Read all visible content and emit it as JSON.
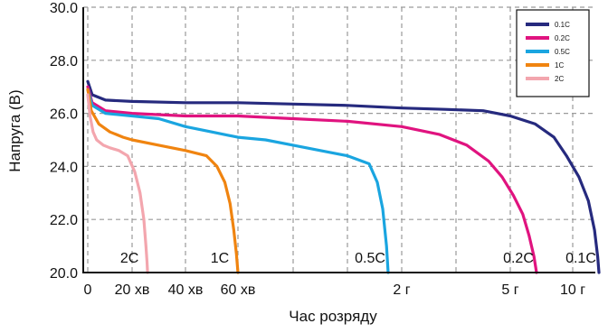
{
  "chart_data": {
    "type": "line",
    "title": "",
    "xlabel": "Час розряду",
    "ylabel": "Напруга (В)",
    "ylim": [
      20.0,
      30.0
    ],
    "y_ticks": [
      "30.0",
      "28.0",
      "26.0",
      "24.0",
      "22.0",
      "20.0"
    ],
    "y_tick_values": [
      30,
      28,
      26,
      24,
      22,
      20
    ],
    "x_axis_note": "segmented time axis: minutes, then hours",
    "x_ticks": [
      {
        "label": "0",
        "slot": 0
      },
      {
        "label": "20 хв",
        "slot": 1
      },
      {
        "label": "40 хв",
        "slot": 2
      },
      {
        "label": "60 хв",
        "slot": 3
      },
      {
        "label": "2 г",
        "slot": 6
      },
      {
        "label": "5 г",
        "slot": 8
      },
      {
        "label": "10 г",
        "slot": 9
      }
    ],
    "legend": {
      "position": "top-right",
      "entries": [
        "0.1C",
        "0.2C",
        "0.5C",
        "1C",
        "2C"
      ]
    },
    "grid": {
      "style": "dashed",
      "vertical_slots": [
        0,
        1,
        2,
        3,
        4,
        5,
        6,
        7,
        8,
        9
      ],
      "horizontal_values": [
        20,
        22,
        24,
        26,
        28,
        30
      ]
    },
    "series": [
      {
        "name": "0.1C",
        "label": "0.1C",
        "color": "#262a7e",
        "x": [
          0,
          0.1,
          0.4,
          1,
          2,
          3,
          4,
          5,
          6,
          6.8,
          7.5,
          8,
          8.4,
          8.7,
          8.9,
          9.1,
          9.25,
          9.35,
          9.4,
          9.42
        ],
        "y": [
          27.2,
          26.7,
          26.5,
          26.45,
          26.4,
          26.4,
          26.35,
          26.3,
          26.2,
          26.15,
          26.1,
          25.9,
          25.6,
          25.1,
          24.4,
          23.6,
          22.7,
          21.6,
          20.6,
          20.0
        ]
      },
      {
        "name": "0.2C",
        "label": "0.2C",
        "color": "#e0137f",
        "x": [
          0,
          0.1,
          0.4,
          1,
          2,
          3,
          4,
          5,
          6,
          6.7,
          7.2,
          7.6,
          7.85,
          8.05,
          8.2,
          8.3,
          8.38,
          8.42
        ],
        "y": [
          27.0,
          26.4,
          26.1,
          26.0,
          25.9,
          25.9,
          25.8,
          25.7,
          25.5,
          25.2,
          24.8,
          24.2,
          23.6,
          22.9,
          22.2,
          21.4,
          20.6,
          20.0
        ]
      },
      {
        "name": "0.5C",
        "label": "0.5C",
        "color": "#1aa5e0",
        "x": [
          0,
          0.1,
          0.4,
          1,
          1.5,
          2,
          2.5,
          3,
          3.5,
          4,
          4.5,
          5,
          5.4,
          5.55,
          5.65,
          5.72,
          5.75
        ],
        "y": [
          26.9,
          26.3,
          26.0,
          25.9,
          25.8,
          25.5,
          25.3,
          25.1,
          25.0,
          24.8,
          24.6,
          24.4,
          24.1,
          23.4,
          22.4,
          21.0,
          20.0
        ]
      },
      {
        "name": "1C",
        "label": "1C",
        "color": "#f08410",
        "x": [
          0,
          0.08,
          0.25,
          0.5,
          0.8,
          1,
          1.5,
          2,
          2.4,
          2.6,
          2.75,
          2.85,
          2.92,
          2.97,
          3.0
        ],
        "y": [
          26.9,
          26.1,
          25.6,
          25.3,
          25.1,
          25.0,
          24.8,
          24.6,
          24.4,
          24.0,
          23.4,
          22.6,
          21.6,
          20.7,
          20.0
        ]
      },
      {
        "name": "2C",
        "label": "2C",
        "color": "#f3a6ae",
        "x": [
          0,
          0.05,
          0.12,
          0.2,
          0.35,
          0.5,
          0.7,
          0.9,
          1.05,
          1.15,
          1.22,
          1.26,
          1.28,
          1.29
        ],
        "y": [
          26.7,
          25.9,
          25.3,
          25.0,
          24.8,
          24.7,
          24.6,
          24.4,
          23.8,
          23.0,
          22.0,
          21.0,
          20.4,
          20.0
        ]
      }
    ]
  }
}
